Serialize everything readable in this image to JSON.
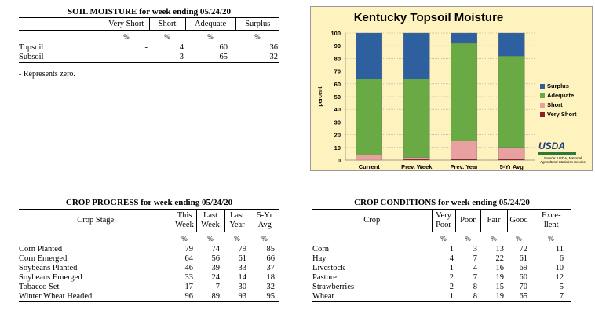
{
  "soil_moisture": {
    "caption": "SOIL MOISTURE for week ending 05/24/20",
    "headers": [
      "Very Short",
      "Short",
      "Adequate",
      "Surplus"
    ],
    "pct_row": [
      "%",
      "%",
      "%",
      "%"
    ],
    "rows": [
      {
        "label": "Topsoil",
        "values": [
          "-",
          "4",
          "60",
          "36"
        ]
      },
      {
        "label": "Subsoil",
        "values": [
          "-",
          "3",
          "65",
          "32"
        ]
      }
    ],
    "footnote": "- Represents zero."
  },
  "chart": {
    "title": "Kentucky Topsoil Moisture",
    "ylabel": "percent",
    "usda_logo": "USDA",
    "source": "Source: USDA, National Agricultural Statistics Service",
    "colors": {
      "surplus": "#2e5f9e",
      "adequate": "#6aaa45",
      "short": "#e8a0a0",
      "very_short": "#8b2020"
    }
  },
  "chart_data": {
    "type": "bar",
    "stacked": true,
    "title": "Kentucky Topsoil Moisture",
    "xlabel": "",
    "ylabel": "percent",
    "categories": [
      "Current",
      "Prev. Week",
      "Prev. Year",
      "5-Yr Avg"
    ],
    "ylim": [
      0,
      100
    ],
    "yticks": [
      "0",
      "10",
      "20",
      "30",
      "40",
      "50",
      "60",
      "70",
      "80",
      "90",
      "100"
    ],
    "series": [
      {
        "name": "Very Short",
        "values": [
          0,
          1,
          1,
          1
        ]
      },
      {
        "name": "Short",
        "values": [
          4,
          1,
          14,
          9
        ]
      },
      {
        "name": "Adequate",
        "values": [
          60,
          62,
          77,
          72
        ]
      },
      {
        "name": "Surplus",
        "values": [
          36,
          36,
          8,
          18
        ]
      }
    ],
    "legend_order": [
      "Surplus",
      "Adequate",
      "Short",
      "Very Short"
    ],
    "legend": "right",
    "grid": true
  },
  "crop_progress": {
    "caption": "CROP PROGRESS for week ending 05/24/20",
    "stage_header": "Crop Stage",
    "headers": [
      [
        "This",
        "Week"
      ],
      [
        "Last",
        "Week"
      ],
      [
        "Last",
        "Year"
      ],
      [
        "5-Yr",
        "Avg"
      ]
    ],
    "pct_row": [
      "%",
      "%",
      "%",
      "%"
    ],
    "rows": [
      {
        "label": "Corn Planted",
        "values": [
          "79",
          "74",
          "79",
          "85"
        ]
      },
      {
        "label": "Corn Emerged",
        "values": [
          "64",
          "56",
          "61",
          "66"
        ]
      },
      {
        "label": "Soybeans Planted",
        "values": [
          "46",
          "39",
          "33",
          "37"
        ]
      },
      {
        "label": "Soybeans Emerged",
        "values": [
          "33",
          "24",
          "14",
          "18"
        ]
      },
      {
        "label": "Tobacco Set",
        "values": [
          "17",
          "7",
          "30",
          "32"
        ]
      },
      {
        "label": "Winter Wheat Headed",
        "values": [
          "96",
          "89",
          "93",
          "95"
        ]
      }
    ]
  },
  "crop_conditions": {
    "caption": "CROP CONDITIONS for week ending 05/24/20",
    "crop_header": "Crop",
    "headers": [
      [
        "Very",
        "Poor"
      ],
      [
        "Poor",
        ""
      ],
      [
        "Fair",
        ""
      ],
      [
        "Good",
        ""
      ],
      [
        "Exce-",
        "llent"
      ]
    ],
    "pct_row": [
      "%",
      "%",
      "%",
      "%",
      "%"
    ],
    "rows": [
      {
        "label": "Corn",
        "values": [
          "1",
          "3",
          "13",
          "72",
          "11"
        ]
      },
      {
        "label": "Hay",
        "values": [
          "4",
          "7",
          "22",
          "61",
          "6"
        ]
      },
      {
        "label": "Livestock",
        "values": [
          "1",
          "4",
          "16",
          "69",
          "10"
        ]
      },
      {
        "label": "Pasture",
        "values": [
          "2",
          "7",
          "19",
          "60",
          "12"
        ]
      },
      {
        "label": "Strawberries",
        "values": [
          "2",
          "8",
          "15",
          "70",
          "5"
        ]
      },
      {
        "label": "Wheat",
        "values": [
          "1",
          "8",
          "19",
          "65",
          "7"
        ]
      }
    ]
  }
}
